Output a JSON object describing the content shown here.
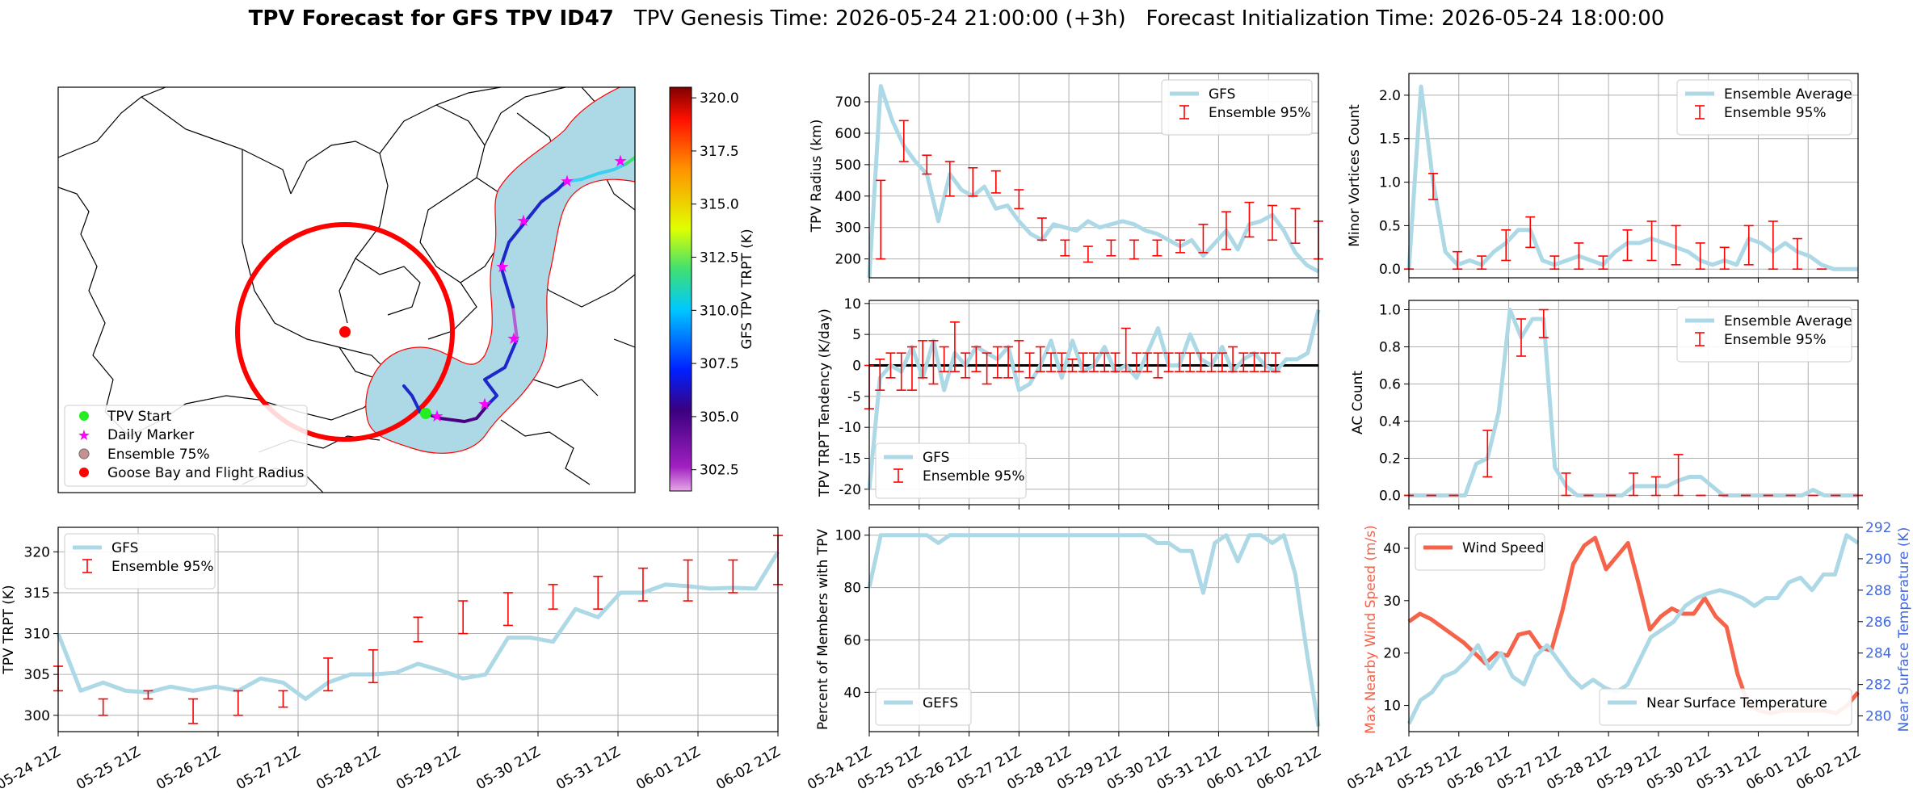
{
  "figure": {
    "title_bold": "TPV Forecast for GFS TPV ID47",
    "title_rest": "TPV Genesis Time: 2026-05-24 21:00:00 (+3h)   Forecast Initialization Time: 2026-05-24 18:00:00"
  },
  "colors": {
    "series": "#add8e6",
    "error": "#ff0000",
    "wind": "#f4634a",
    "temp_axis": "#4169e1",
    "grid": "#b0b0b0"
  },
  "time_ticks": [
    "05-24 21Z",
    "05-25 21Z",
    "05-26 21Z",
    "05-27 21Z",
    "05-28 21Z",
    "05-29 21Z",
    "05-30 21Z",
    "05-31 21Z",
    "06-01 21Z",
    "06-02 21Z"
  ],
  "map": {
    "legend": [
      "TPV Start",
      "Daily Marker",
      "Ensemble 75%",
      "Goose Bay and Flight Radius"
    ],
    "colorbar_label": "GFS TPV TRPT (K)",
    "colorbar_ticks": [
      "302.5",
      "305.0",
      "307.5",
      "310.0",
      "312.5",
      "315.0",
      "317.5",
      "320.0"
    ],
    "colorbar_range": [
      301.5,
      320.5
    ],
    "track_colors": [
      "#ff00ff",
      "#3ad0f0",
      "#1e28c8"
    ]
  },
  "chart_data": [
    {
      "id": "radius",
      "type": "line",
      "ylabel": "TPV Radius (km)",
      "ylim": [
        140,
        790
      ],
      "yticks": [
        200,
        300,
        400,
        500,
        600,
        700
      ],
      "grid": true,
      "legend_position": "upper right",
      "series": [
        {
          "name": "GFS",
          "values": [
            140,
            750,
            640,
            560,
            510,
            470,
            320,
            470,
            420,
            400,
            430,
            360,
            370,
            320,
            280,
            260,
            310,
            300,
            290,
            320,
            300,
            310,
            320,
            310,
            290,
            280,
            260,
            240,
            260,
            210,
            250,
            290,
            230,
            310,
            320,
            340,
            290,
            220,
            180,
            160
          ]
        },
        {
          "name": "Ensemble 95%",
          "type": "errorbar",
          "x_index": [
            1,
            3,
            5,
            7,
            9,
            11,
            13,
            15,
            17,
            19,
            21,
            23,
            25,
            27,
            29,
            31,
            33,
            35,
            37,
            39
          ],
          "low": [
            200,
            510,
            470,
            400,
            400,
            410,
            360,
            260,
            210,
            190,
            210,
            200,
            210,
            220,
            220,
            230,
            270,
            260,
            250,
            200
          ],
          "high": [
            450,
            640,
            530,
            510,
            490,
            480,
            420,
            330,
            260,
            240,
            260,
            260,
            260,
            260,
            310,
            350,
            380,
            370,
            360,
            320
          ]
        }
      ]
    },
    {
      "id": "minor_vortices",
      "type": "line",
      "ylabel": "Minor Vortices Count",
      "ylim": [
        -0.1,
        2.25
      ],
      "yticks": [
        0.0,
        0.5,
        1.0,
        1.5,
        2.0
      ],
      "grid": true,
      "legend_position": "upper right",
      "series": [
        {
          "name": "Ensemble Average",
          "values": [
            0.0,
            2.1,
            1.0,
            0.2,
            0.05,
            0.1,
            0.05,
            0.2,
            0.3,
            0.45,
            0.45,
            0.1,
            0.05,
            0.1,
            0.15,
            0.1,
            0.05,
            0.2,
            0.3,
            0.3,
            0.35,
            0.3,
            0.25,
            0.2,
            0.1,
            0.05,
            0.1,
            0.05,
            0.35,
            0.3,
            0.2,
            0.3,
            0.2,
            0.15,
            0.05,
            0.0,
            0.0,
            0.0
          ]
        },
        {
          "name": "Ensemble 95%",
          "type": "errorbar",
          "x_index": [
            0,
            2,
            4,
            6,
            8,
            10,
            12,
            14,
            16,
            18,
            20,
            22,
            24,
            26,
            28,
            30,
            32,
            34
          ],
          "low": [
            0.0,
            0.8,
            0.0,
            0.0,
            0.1,
            0.25,
            0.0,
            0.0,
            0.0,
            0.1,
            0.1,
            0.05,
            0.0,
            0.0,
            0.05,
            0.0,
            0.0,
            0.0
          ],
          "high": [
            0.0,
            1.1,
            0.2,
            0.15,
            0.45,
            0.6,
            0.15,
            0.3,
            0.15,
            0.45,
            0.55,
            0.5,
            0.3,
            0.25,
            0.5,
            0.55,
            0.35,
            0.0
          ]
        }
      ]
    },
    {
      "id": "tendency",
      "type": "line",
      "ylabel": "TPV TRPT Tendency (K/day)",
      "ylim": [
        -22.5,
        10.5
      ],
      "yticks": [
        -20,
        -15,
        -10,
        -5,
        0,
        5,
        10
      ],
      "grid": true,
      "zero_line": true,
      "legend_position": "lower left",
      "series": [
        {
          "name": "GFS",
          "values": [
            -20,
            -2,
            0,
            -1,
            3,
            -2,
            4,
            -4,
            2,
            0,
            3,
            2,
            1,
            3,
            -4,
            -3,
            0,
            4,
            -2,
            4,
            -1,
            0,
            3,
            -1,
            0,
            -2,
            2,
            6,
            0,
            0,
            5,
            1,
            0,
            3,
            -1,
            1,
            2,
            0,
            -1,
            1,
            1,
            2,
            9
          ]
        },
        {
          "name": "Ensemble 95%",
          "type": "errorbar",
          "x_index": [
            0,
            1,
            2,
            3,
            4,
            5,
            6,
            7,
            8,
            9,
            10,
            11,
            12,
            13,
            14,
            15,
            16,
            17,
            18,
            19,
            20,
            21,
            22,
            23,
            24,
            25,
            26,
            27,
            28,
            29,
            30,
            31,
            32,
            33,
            34,
            35,
            36,
            37,
            38
          ],
          "low": [
            -7,
            -4,
            -2,
            -4,
            -4,
            -2,
            -3,
            -1,
            -1,
            -2,
            -1,
            -3,
            -2,
            -2,
            -1,
            -2,
            -1,
            -1,
            -1,
            -1,
            -1,
            -1,
            -1,
            -1,
            -1,
            -1,
            -1,
            -2,
            -1,
            -1,
            -1,
            -1,
            -1,
            -1,
            -1,
            -1,
            -1,
            -1,
            -1
          ],
          "high": [
            0,
            1,
            2,
            2,
            3,
            4,
            4,
            3,
            7,
            2,
            3,
            2,
            3,
            3,
            4,
            2,
            3,
            2,
            2,
            1,
            2,
            2,
            2,
            2,
            6,
            2,
            2,
            2,
            2,
            2,
            2,
            2,
            2,
            2,
            3,
            2,
            2,
            2,
            2
          ]
        }
      ]
    },
    {
      "id": "ac_count",
      "type": "line",
      "ylabel": "AC Count",
      "ylim": [
        -0.05,
        1.05
      ],
      "yticks": [
        0.0,
        0.2,
        0.4,
        0.6,
        0.8,
        1.0
      ],
      "grid": true,
      "legend_position": "upper right",
      "series": [
        {
          "name": "Ensemble Average",
          "values": [
            0,
            0,
            0,
            0,
            0,
            0,
            0.17,
            0.2,
            0.45,
            1.0,
            0.85,
            0.95,
            0.95,
            0.15,
            0.05,
            0,
            0,
            0,
            0,
            0,
            0.05,
            0.05,
            0.05,
            0.05,
            0.08,
            0.1,
            0.1,
            0.05,
            0,
            0,
            0,
            0,
            0,
            0,
            0,
            0,
            0.03,
            0,
            0,
            0,
            0
          ]
        },
        {
          "name": "Ensemble 95%",
          "type": "errorbar",
          "x_index": [
            0,
            2,
            4,
            7,
            10,
            12,
            14,
            16,
            18,
            20,
            22,
            24,
            26,
            28,
            30,
            32,
            34,
            36,
            38,
            40
          ],
          "low": [
            0,
            0,
            0,
            0.1,
            0.75,
            0.85,
            0,
            0,
            0,
            0,
            0,
            0,
            0,
            0,
            0,
            0,
            0,
            0,
            0,
            0
          ],
          "high": [
            0,
            0,
            0,
            0.35,
            0.95,
            1.0,
            0.12,
            0,
            0,
            0.12,
            0.1,
            0.22,
            0,
            0,
            0,
            0,
            0,
            0,
            0,
            0
          ]
        }
      ]
    },
    {
      "id": "trpt",
      "type": "line",
      "ylabel": "TPV TRPT (K)",
      "ylim": [
        298,
        323
      ],
      "yticks": [
        300,
        305,
        310,
        315,
        320
      ],
      "grid": true,
      "legend_position": "upper left",
      "series": [
        {
          "name": "GFS",
          "values": [
            310,
            303,
            304,
            303,
            302.8,
            303.5,
            303,
            303.5,
            303,
            304.5,
            304,
            302,
            304,
            305,
            305,
            305.2,
            306.3,
            305.5,
            304.5,
            305,
            309.5,
            309.5,
            309,
            313,
            312,
            315,
            315,
            316,
            315.8,
            315.5,
            315.6,
            315.5,
            320
          ]
        },
        {
          "name": "Ensemble 95%",
          "type": "errorbar",
          "x_index": [
            0,
            2,
            4,
            6,
            8,
            10,
            12,
            14,
            16,
            18,
            20,
            22,
            24,
            26,
            28,
            30,
            32
          ],
          "low": [
            303,
            300,
            302,
            299,
            300,
            301,
            303,
            304,
            309,
            310,
            311,
            313,
            313,
            314,
            314,
            315,
            316
          ],
          "high": [
            306,
            302,
            303,
            302,
            303,
            303,
            307,
            308,
            312,
            314,
            315,
            316,
            317,
            318,
            319,
            319,
            322
          ]
        }
      ]
    },
    {
      "id": "percent",
      "type": "line",
      "ylabel": "Percent of Members with TPV",
      "ylim": [
        25,
        103
      ],
      "yticks": [
        40,
        60,
        80,
        100
      ],
      "grid": true,
      "legend_position": "lower left",
      "series": [
        {
          "name": "GEFS",
          "values": [
            80,
            100,
            100,
            100,
            100,
            100,
            97,
            100,
            100,
            100,
            100,
            100,
            100,
            100,
            100,
            100,
            100,
            100,
            100,
            100,
            100,
            100,
            100,
            100,
            100,
            97,
            97,
            94,
            94,
            78,
            97,
            100,
            90,
            100,
            100,
            97,
            100,
            85,
            55,
            27
          ]
        }
      ]
    },
    {
      "id": "wind_temp",
      "type": "line",
      "ylabel": "Max Nearby Wind Speed (m/s)",
      "ylabel_right": "Near Surface Temperature (K)",
      "ylim": [
        5,
        44
      ],
      "yticks": [
        10,
        20,
        30,
        40
      ],
      "ylim_right": [
        279,
        292
      ],
      "yticks_right": [
        280,
        282,
        284,
        286,
        288,
        290,
        292
      ],
      "grid": false,
      "series": [
        {
          "name": "Wind Speed",
          "axis": "left",
          "values": [
            26,
            27.5,
            26.5,
            25,
            23.5,
            22,
            20,
            18,
            20,
            19.5,
            23.5,
            24,
            21,
            20.5,
            28,
            37,
            40.5,
            42,
            36,
            38.5,
            41,
            33,
            24.5,
            27,
            28.5,
            27.5,
            27.5,
            30.5,
            27,
            25,
            16,
            10,
            9,
            8.5,
            9,
            9,
            9,
            9,
            9,
            8.5,
            10,
            12.5
          ]
        },
        {
          "name": "Near Surface Temperature",
          "axis": "right",
          "values": [
            279.5,
            281,
            281.5,
            282.5,
            282.8,
            283.5,
            284.5,
            283,
            284,
            282.5,
            282,
            283.8,
            284.5,
            283.5,
            282.5,
            281.8,
            282.3,
            281.8,
            281.5,
            282,
            283.5,
            285,
            285.5,
            286,
            287,
            287.5,
            287.8,
            288,
            287.8,
            287.5,
            287,
            287.5,
            287.5,
            288.5,
            288.8,
            288,
            289,
            289,
            291.5,
            291
          ]
        }
      ]
    }
  ]
}
